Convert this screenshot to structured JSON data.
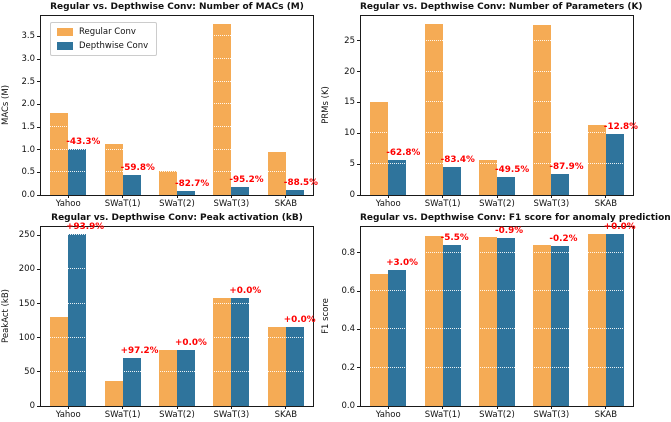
{
  "figure": {
    "background": "#ffffff"
  },
  "colors": {
    "regular": "#F5AB55",
    "depthwise": "#2F749C",
    "annotation": "#FF0000",
    "axis": "#1a1a1a"
  },
  "legend": {
    "items": [
      {
        "label": "Regular Conv",
        "color_key": "regular"
      },
      {
        "label": "Depthwise Conv",
        "color_key": "depthwise"
      }
    ]
  },
  "chart_data": [
    {
      "type": "bar",
      "title": "Regular vs. Depthwise Conv: Number of MACs (M)",
      "ylabel": "MACs (M)",
      "categories": [
        "Yahoo",
        "SWaT(1)",
        "SWaT(2)",
        "SWaT(3)",
        "SKAB"
      ],
      "series": [
        {
          "name": "Regular Conv",
          "values": [
            1.8,
            1.12,
            0.52,
            3.78,
            0.95
          ]
        },
        {
          "name": "Depthwise Conv",
          "values": [
            1.02,
            0.45,
            0.09,
            0.18,
            0.11
          ]
        }
      ],
      "annotations": [
        "-43.3%",
        "-59.8%",
        "-82.7%",
        "-95.2%",
        "-88.5%"
      ],
      "yticks": [
        0,
        0.5,
        1.0,
        1.5,
        2.0,
        2.5,
        3.0,
        3.5
      ],
      "ytick_labels": [
        "0.0",
        "0.5",
        "1.0",
        "1.5",
        "2.0",
        "2.5",
        "3.0",
        "3.5"
      ],
      "ylim": [
        0,
        3.95
      ],
      "grid": "white-dotted",
      "legend": true,
      "legend_position": "upper-left"
    },
    {
      "type": "bar",
      "title": "Regular vs. Depthwise Conv: Number of Parameters (K)",
      "ylabel": "PRMs (K)",
      "categories": [
        "Yahoo",
        "SWaT(1)",
        "SWaT(2)",
        "SWaT(3)",
        "SKAB"
      ],
      "series": [
        {
          "name": "Regular Conv",
          "values": [
            15.0,
            27.7,
            5.7,
            27.5,
            11.3
          ]
        },
        {
          "name": "Depthwise Conv",
          "values": [
            5.6,
            4.6,
            2.9,
            3.35,
            9.85
          ]
        }
      ],
      "annotations": [
        "-62.8%",
        "-83.4%",
        "-49.5%",
        "-87.9%",
        "-12.8%"
      ],
      "yticks": [
        0,
        5,
        10,
        15,
        20,
        25
      ],
      "ytick_labels": [
        "0",
        "5",
        "10",
        "15",
        "20",
        "25"
      ],
      "ylim": [
        0,
        29
      ],
      "grid": "white-dotted",
      "legend": false
    },
    {
      "type": "bar",
      "title": "Regular vs. Depthwise Conv: Peak activation (kB)",
      "ylabel": "PeakAct (kB)",
      "categories": [
        "Yahoo",
        "SWaT(1)",
        "SWaT(2)",
        "SWaT(3)",
        "SKAB"
      ],
      "series": [
        {
          "name": "Regular Conv",
          "values": [
            130,
            36,
            82,
            158,
            115
          ]
        },
        {
          "name": "Depthwise Conv",
          "values": [
            252,
            71,
            82,
            158,
            115
          ]
        }
      ],
      "annotations": [
        "+93.9%",
        "+97.2%",
        "+0.0%",
        "+0.0%",
        "+0.0%"
      ],
      "yticks": [
        0,
        50,
        100,
        150,
        200,
        250
      ],
      "ytick_labels": [
        "0",
        "50",
        "100",
        "150",
        "200",
        "250"
      ],
      "ylim": [
        0,
        262
      ],
      "grid": "white-dotted",
      "legend": false
    },
    {
      "type": "bar",
      "title": "Regular vs. Depthwise Conv: F1 score for anomaly prediction",
      "ylabel": "F1 score",
      "categories": [
        "Yahoo",
        "SWaT(1)",
        "SWaT(2)",
        "SWaT(3)",
        "SKAB"
      ],
      "series": [
        {
          "name": "Regular Conv",
          "values": [
            0.69,
            0.89,
            0.885,
            0.84,
            0.9
          ]
        },
        {
          "name": "Depthwise Conv",
          "values": [
            0.711,
            0.841,
            0.877,
            0.838,
            0.9
          ]
        }
      ],
      "annotations": [
        "+3.0%",
        "-5.5%",
        "-0.9%",
        "-0.2%",
        "+0.0%"
      ],
      "yticks": [
        0,
        0.2,
        0.4,
        0.6,
        0.8
      ],
      "ytick_labels": [
        "0.0",
        "0.2",
        "0.4",
        "0.6",
        "0.8"
      ],
      "ylim": [
        0,
        0.935
      ],
      "grid": "white-dotted",
      "legend": false
    }
  ]
}
